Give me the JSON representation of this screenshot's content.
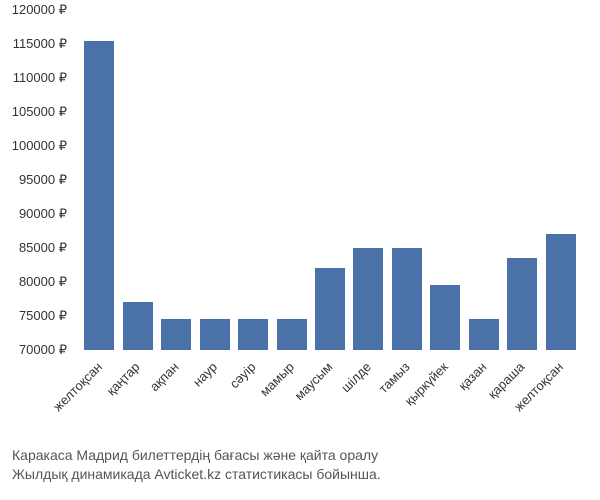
{
  "chart": {
    "type": "bar",
    "categories": [
      "желтоқсан",
      "қаңтар",
      "ақпан",
      "наур",
      "сәуір",
      "мамыр",
      "маусым",
      "шілде",
      "тамыз",
      "қыркүйек",
      "қазан",
      "қараша",
      "желтоқсан"
    ],
    "values": [
      115500,
      77000,
      74500,
      74500,
      74500,
      74500,
      82000,
      85000,
      85000,
      79500,
      74500,
      83500,
      87000
    ],
    "bar_color": "#4a72a8",
    "background_color": "#ffffff",
    "ylim": [
      70000,
      120000
    ],
    "ytick_step": 5000,
    "y_tick_labels": [
      "70000 ₽",
      "75000 ₽",
      "80000 ₽",
      "85000 ₽",
      "90000 ₽",
      "95000 ₽",
      "100000 ₽",
      "105000 ₽",
      "110000 ₽",
      "115000 ₽",
      "120000 ₽"
    ],
    "y_tick_values": [
      70000,
      75000,
      80000,
      85000,
      90000,
      95000,
      100000,
      105000,
      110000,
      115000,
      120000
    ],
    "bar_width_ratio": 0.78,
    "label_fontsize": 13,
    "tick_fontsize": 13,
    "x_label_rotation": -45
  },
  "caption": {
    "line1": "Каракаса Мадрид билеттердің бағасы және қайта оралу",
    "line2": "Жылдық динамикада Avticket.kz статистикасы бойынша."
  }
}
